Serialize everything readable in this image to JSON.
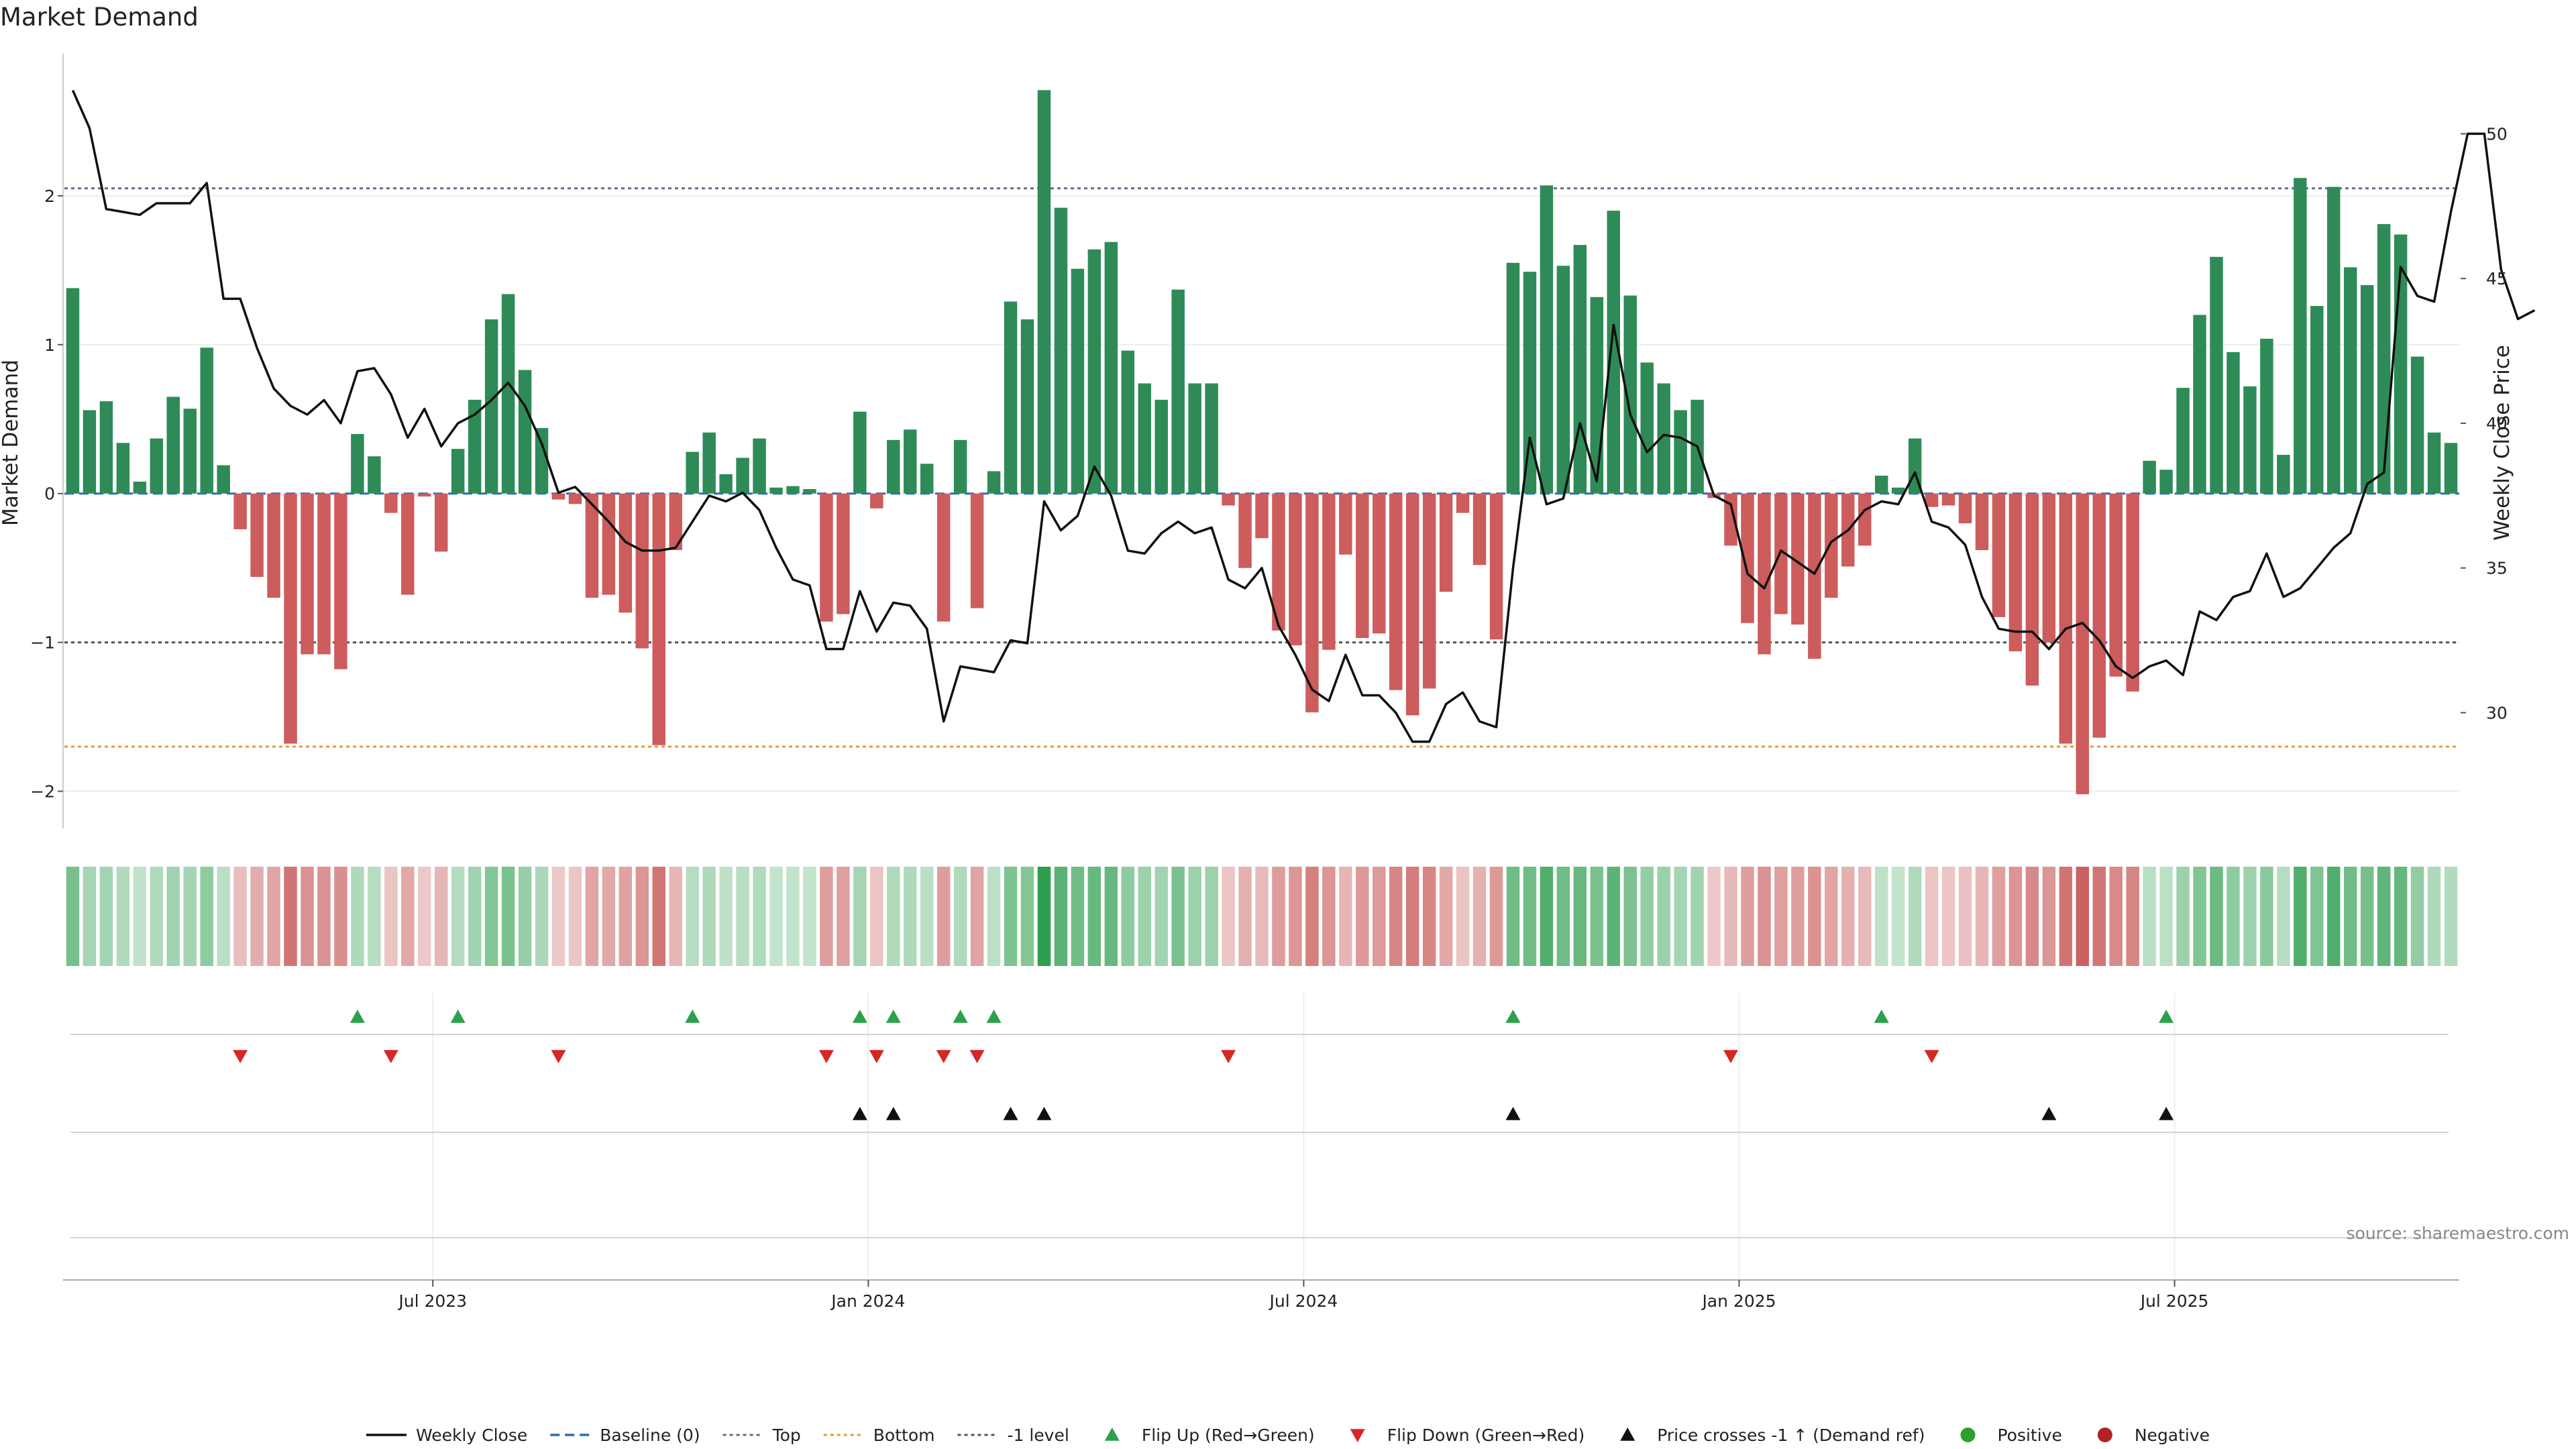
{
  "title": "Market Demand",
  "source": "source: sharemaestro.com",
  "chart_data": {
    "type": "bar",
    "title": "Market Demand",
    "ylabel": "Market Demand",
    "y2label": "Weekly Close Price",
    "ylim": [
      -2.25,
      3.0
    ],
    "y2lim": [
      26.0,
      53.0
    ],
    "yticks": [
      -2,
      -1,
      0,
      1,
      2
    ],
    "y2ticks": [
      30,
      35,
      40,
      45,
      50
    ],
    "xtick_labels": [
      "Jul 2023",
      "Jan 2024",
      "Jul 2024",
      "Jan 2025",
      "Jul 2025"
    ],
    "xtick_weeks": [
      22,
      48,
      74,
      100,
      126
    ],
    "reference_lines": {
      "top": 2.05,
      "bottom": -1.7,
      "minus_one": -1.0,
      "baseline": 0
    },
    "demand": [
      1.38,
      0.56,
      0.62,
      0.34,
      0.08,
      0.37,
      0.65,
      0.57,
      0.98,
      0.19,
      -0.24,
      -0.56,
      -0.7,
      -1.68,
      -1.08,
      -1.08,
      -1.18,
      0.4,
      0.25,
      -0.13,
      -0.68,
      -0.02,
      -0.39,
      0.3,
      0.63,
      1.17,
      1.34,
      0.83,
      0.44,
      -0.04,
      -0.07,
      -0.7,
      -0.68,
      -0.8,
      -1.04,
      -1.69,
      -0.38,
      0.28,
      0.41,
      0.13,
      0.24,
      0.37,
      0.04,
      0.05,
      0.03,
      -0.86,
      -0.81,
      0.55,
      -0.1,
      0.36,
      0.43,
      0.2,
      -0.86,
      0.36,
      -0.77,
      0.15,
      1.29,
      1.17,
      2.71,
      1.92,
      1.51,
      1.64,
      1.69,
      0.96,
      0.74,
      0.63,
      1.37,
      0.74,
      0.74,
      -0.08,
      -0.5,
      -0.3,
      -0.92,
      -1.02,
      -1.47,
      -1.05,
      -0.41,
      -0.97,
      -0.94,
      -1.32,
      -1.49,
      -1.31,
      -0.66,
      -0.13,
      -0.48,
      -0.98,
      1.55,
      1.49,
      2.07,
      1.53,
      1.67,
      1.32,
      1.9,
      1.33,
      0.88,
      0.74,
      0.56,
      0.63,
      -0.03,
      -0.35,
      -0.87,
      -1.08,
      -0.81,
      -0.88,
      -1.11,
      -0.7,
      -0.49,
      -0.35,
      0.12,
      0.04,
      0.37,
      -0.09,
      -0.08,
      -0.2,
      -0.38,
      -0.83,
      -1.06,
      -1.29,
      -1.0,
      -1.68,
      -2.02,
      -1.64,
      -1.23,
      -1.33,
      0.22,
      0.16,
      0.71,
      1.2,
      1.59,
      0.95,
      0.72,
      1.04,
      0.26,
      2.12,
      1.26,
      2.06,
      1.52,
      1.4,
      1.81,
      1.74,
      0.92,
      0.41,
      0.34
    ],
    "close": [
      51.5,
      50.2,
      47.4,
      47.3,
      47.2,
      47.6,
      47.6,
      47.6,
      48.3,
      44.3,
      44.3,
      42.6,
      41.2,
      40.6,
      40.3,
      40.8,
      40.0,
      41.8,
      41.9,
      41.0,
      39.5,
      40.5,
      39.2,
      40.0,
      40.3,
      40.8,
      41.4,
      40.6,
      39.3,
      37.6,
      37.8,
      37.2,
      36.6,
      35.9,
      35.6,
      35.6,
      35.7,
      36.6,
      37.5,
      37.3,
      37.6,
      37.0,
      35.7,
      34.6,
      34.4,
      32.2,
      32.2,
      34.2,
      32.8,
      33.8,
      33.7,
      32.9,
      29.7,
      31.6,
      31.5,
      31.4,
      32.5,
      32.4,
      37.3,
      36.3,
      36.8,
      38.5,
      37.5,
      35.6,
      35.5,
      36.2,
      36.6,
      36.2,
      36.4,
      34.6,
      34.3,
      35.0,
      33.0,
      32.0,
      30.8,
      30.4,
      32.0,
      30.6,
      30.6,
      30.0,
      29.0,
      29.0,
      30.3,
      30.7,
      29.7,
      29.5,
      35.0,
      39.5,
      37.2,
      37.4,
      40.0,
      38.0,
      43.4,
      40.3,
      39.0,
      39.6,
      39.5,
      39.2,
      37.5,
      37.2,
      34.8,
      34.3,
      35.6,
      35.2,
      34.8,
      35.9,
      36.3,
      37.0,
      37.3,
      37.2,
      38.3,
      36.6,
      36.4,
      35.8,
      34.0,
      32.9,
      32.8,
      32.8,
      32.2,
      32.9,
      33.1,
      32.5,
      31.6,
      31.2,
      31.6,
      31.8,
      31.3,
      33.5,
      33.2,
      34.0,
      34.2,
      35.5,
      34.0,
      34.3,
      35.0,
      35.7,
      36.2,
      37.9,
      38.3,
      45.4,
      44.4,
      44.2,
      47.3,
      50.0,
      50.0,
      45.3,
      43.6,
      43.9
    ],
    "flip_up_weeks": [
      17,
      23,
      37,
      47,
      49,
      53,
      55,
      86,
      108,
      125
    ],
    "flip_down_weeks": [
      10,
      19,
      29,
      45,
      48,
      52,
      54,
      69,
      99,
      111
    ],
    "price_cross_weeks": [
      47,
      49,
      56,
      58,
      86,
      118,
      125
    ],
    "series": [
      {
        "name": "Weekly Close",
        "values_key": "close"
      },
      {
        "name": "Market Demand",
        "values_key": "demand"
      }
    ],
    "legend": {
      "placement": "bottom-center",
      "entries": [
        {
          "label": "Weekly Close",
          "kind": "line-solid",
          "color": "#111111"
        },
        {
          "label": "Baseline (0)",
          "kind": "line-dash",
          "color": "#2b6cb0"
        },
        {
          "label": "Top",
          "kind": "line-dot",
          "color": "#6a6a8a"
        },
        {
          "label": "Bottom",
          "kind": "line-dot",
          "color": "#e39a3c"
        },
        {
          "label": "-1 level",
          "kind": "line-dot",
          "color": "#555555"
        },
        {
          "label": "Flip Up (Red→Green)",
          "kind": "tri-up",
          "color": "#2ca04a"
        },
        {
          "label": "Flip Down (Green→Red)",
          "kind": "tri-down",
          "color": "#d62728"
        },
        {
          "label": "Price crosses -1 ↑ (Demand ref)",
          "kind": "tri-up",
          "color": "#111111"
        },
        {
          "label": "Positive",
          "kind": "dot",
          "color": "#2ca02c"
        },
        {
          "label": "Negative",
          "kind": "dot",
          "color": "#b22222"
        }
      ]
    },
    "colors": {
      "positive_bar": "#2e8b57",
      "negative_bar": "#cd5c5c",
      "close_line": "#111111",
      "heat_positive": "#2e9e4f",
      "heat_negative": "#c04040",
      "flip_up": "#2ca04a",
      "flip_down": "#d62728",
      "cross": "#111111"
    }
  }
}
